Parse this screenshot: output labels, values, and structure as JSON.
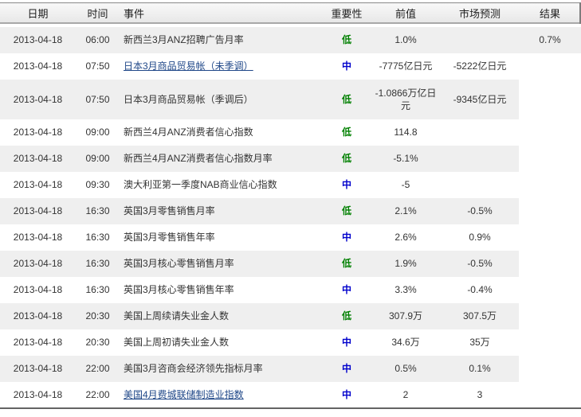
{
  "colors": {
    "importance_low": "#008000",
    "importance_mid": "#0000cc",
    "link": "#1f4788",
    "stripe": "#efefef"
  },
  "table": {
    "columns": [
      {
        "key": "date",
        "label": "日期"
      },
      {
        "key": "time",
        "label": "时间"
      },
      {
        "key": "event",
        "label": "事件"
      },
      {
        "key": "importance",
        "label": "重要性"
      },
      {
        "key": "previous",
        "label": "前值"
      },
      {
        "key": "forecast",
        "label": "市场预测"
      },
      {
        "key": "result",
        "label": "结果"
      }
    ],
    "rows": [
      {
        "date": "2013-04-18",
        "time": "06:00",
        "event": "新西兰3月ANZ招聘广告月率",
        "link": false,
        "importance": "低",
        "level": "low",
        "previous": "1.0%",
        "forecast": "",
        "result": "0.7%",
        "tall": false
      },
      {
        "date": "2013-04-18",
        "time": "07:50",
        "event": "日本3月商品贸易帐（未季调）",
        "link": true,
        "importance": "中",
        "level": "mid",
        "previous": "-7775亿日元",
        "forecast": "-5222亿日元",
        "result": "",
        "tall": false
      },
      {
        "date": "2013-04-18",
        "time": "07:50",
        "event": "日本3月商品贸易帐（季调后）",
        "link": false,
        "importance": "低",
        "level": "low",
        "previous": "-1.0866万亿日元",
        "forecast": "-9345亿日元",
        "result": "",
        "tall": true
      },
      {
        "date": "2013-04-18",
        "time": "09:00",
        "event": "新西兰4月ANZ消费者信心指数",
        "link": false,
        "importance": "低",
        "level": "low",
        "previous": "114.8",
        "forecast": "",
        "result": "",
        "tall": false
      },
      {
        "date": "2013-04-18",
        "time": "09:00",
        "event": "新西兰4月ANZ消费者信心指数月率",
        "link": false,
        "importance": "低",
        "level": "low",
        "previous": "-5.1%",
        "forecast": "",
        "result": "",
        "tall": false
      },
      {
        "date": "2013-04-18",
        "time": "09:30",
        "event": "澳大利亚第一季度NAB商业信心指数",
        "link": false,
        "importance": "中",
        "level": "mid",
        "previous": "-5",
        "forecast": "",
        "result": "",
        "tall": false
      },
      {
        "date": "2013-04-18",
        "time": "16:30",
        "event": "英国3月零售销售月率",
        "link": false,
        "importance": "低",
        "level": "low",
        "previous": "2.1%",
        "forecast": "-0.5%",
        "result": "",
        "tall": false
      },
      {
        "date": "2013-04-18",
        "time": "16:30",
        "event": "英国3月零售销售年率",
        "link": false,
        "importance": "中",
        "level": "mid",
        "previous": "2.6%",
        "forecast": "0.9%",
        "result": "",
        "tall": false
      },
      {
        "date": "2013-04-18",
        "time": "16:30",
        "event": "英国3月核心零售销售月率",
        "link": false,
        "importance": "低",
        "level": "low",
        "previous": "1.9%",
        "forecast": "-0.5%",
        "result": "",
        "tall": false
      },
      {
        "date": "2013-04-18",
        "time": "16:30",
        "event": "英国3月核心零售销售年率",
        "link": false,
        "importance": "中",
        "level": "mid",
        "previous": "3.3%",
        "forecast": "-0.4%",
        "result": "",
        "tall": false
      },
      {
        "date": "2013-04-18",
        "time": "20:30",
        "event": "美国上周续请失业金人数",
        "link": false,
        "importance": "低",
        "level": "low",
        "previous": "307.9万",
        "forecast": "307.5万",
        "result": "",
        "tall": false
      },
      {
        "date": "2013-04-18",
        "time": "20:30",
        "event": "美国上周初请失业金人数",
        "link": false,
        "importance": "中",
        "level": "mid",
        "previous": "34.6万",
        "forecast": "35万",
        "result": "",
        "tall": false
      },
      {
        "date": "2013-04-18",
        "time": "22:00",
        "event": "美国3月咨商会经济领先指标月率",
        "link": false,
        "importance": "中",
        "level": "mid",
        "previous": "0.5%",
        "forecast": "0.1%",
        "result": "",
        "tall": false
      },
      {
        "date": "2013-04-18",
        "time": "22:00",
        "event": "美国4月费城联储制造业指数",
        "link": true,
        "importance": "中",
        "level": "mid",
        "previous": "2",
        "forecast": "3",
        "result": "",
        "tall": false
      }
    ]
  }
}
